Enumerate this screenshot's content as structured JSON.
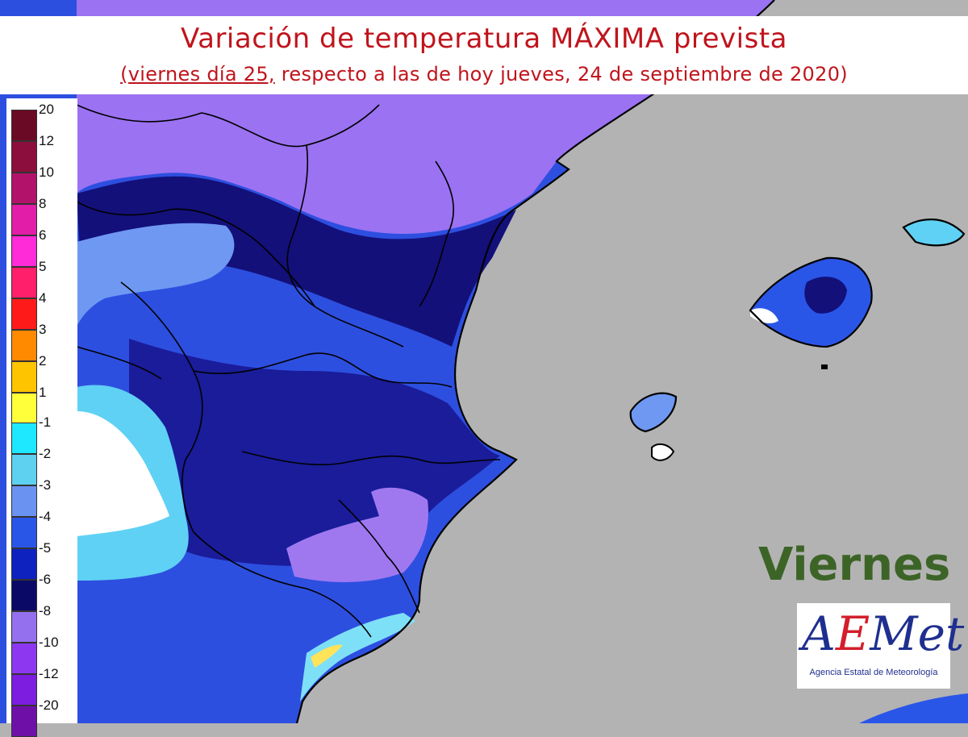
{
  "title": "Variación de temperatura MÁXIMA prevista",
  "subtitle_underlined": "(viernes día 25,",
  "subtitle_rest": " respecto a las de hoy jueves, 24 de septiembre de 2020)",
  "day_label": "Viernes",
  "logo": {
    "mark_a": "A",
    "mark_e": "E",
    "mark_rest": "Met",
    "agency": "Agencia Estatal de Meteorología"
  },
  "legend": {
    "warm": [
      {
        "label": "20",
        "color": "#6b0a24"
      },
      {
        "label": "12",
        "color": "#8c0e3c"
      },
      {
        "label": "10",
        "color": "#b3126b"
      },
      {
        "label": "8",
        "color": "#e21ea8"
      },
      {
        "label": "6",
        "color": "#ff2ad8"
      },
      {
        "label": "5",
        "color": "#ff1f6a"
      },
      {
        "label": "4",
        "color": "#ff1a1a"
      },
      {
        "label": "3",
        "color": "#ff8a00"
      },
      {
        "label": "2",
        "color": "#ffc400"
      },
      {
        "label": "1",
        "color": "#ffff3a"
      }
    ],
    "cold": [
      {
        "label": "-1",
        "color": "#1ee8ff"
      },
      {
        "label": "-2",
        "color": "#5ed0f0"
      },
      {
        "label": "-3",
        "color": "#6a92f0"
      },
      {
        "label": "-4",
        "color": "#2a56e8"
      },
      {
        "label": "-5",
        "color": "#0e22c0"
      },
      {
        "label": "-6",
        "color": "#0a0a66"
      },
      {
        "label": "-8",
        "color": "#9570ee"
      },
      {
        "label": "-10",
        "color": "#8d38f0"
      },
      {
        "label": "-12",
        "color": "#7d1de0"
      },
      {
        "label": "-20",
        "color": "#6e10a8"
      }
    ]
  },
  "colors": {
    "sea": "#b3b3b3",
    "title": "#c0141c",
    "day_label": "#3d6427"
  }
}
